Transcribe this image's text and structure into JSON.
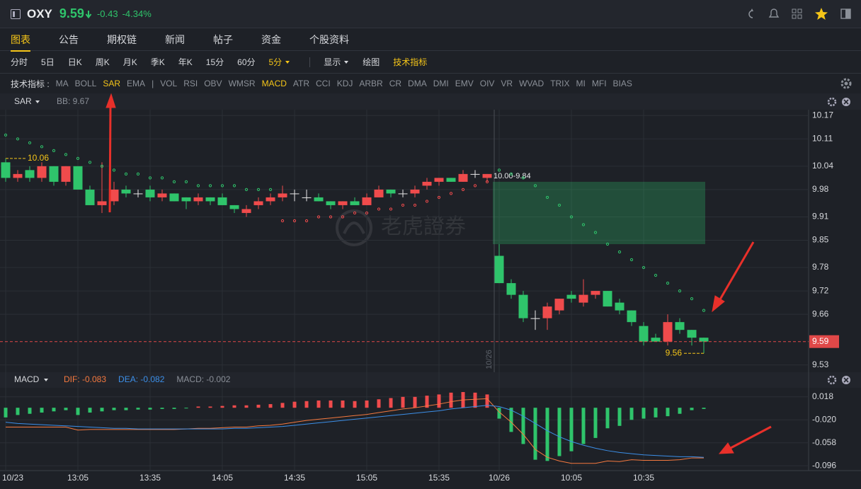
{
  "header": {
    "symbol": "OXY",
    "price": "9.59",
    "change": "-0.43",
    "change_pct": "-4.34%"
  },
  "tabs": [
    "图表",
    "公告",
    "期权链",
    "新闻",
    "帖子",
    "资金",
    "个股资料"
  ],
  "periods": [
    "分时",
    "5日",
    "日K",
    "周K",
    "月K",
    "季K",
    "年K",
    "15分",
    "60分",
    "5分"
  ],
  "toolbar": [
    "显示",
    "绘图",
    "技术指标"
  ],
  "indicator_label": "技术指标 :",
  "indicators": [
    "MA",
    "BOLL",
    "SAR",
    "EMA",
    "|",
    "VOL",
    "RSI",
    "OBV",
    "WMSR",
    "MACD",
    "ATR",
    "CCI",
    "KDJ",
    "ARBR",
    "CR",
    "DMA",
    "DMI",
    "EMV",
    "OIV",
    "VR",
    "WVAD",
    "TRIX",
    "MI",
    "MFI",
    "BIAS"
  ],
  "watermark": "老虎證券",
  "chart_data": [
    {
      "type": "candlestick",
      "categories": [
        "10/23",
        null,
        null,
        null,
        null,
        null,
        "13:05",
        null,
        null,
        null,
        null,
        null,
        "13:35",
        null,
        null,
        null,
        null,
        null,
        "14:05",
        null,
        null,
        null,
        null,
        null,
        "14:35",
        null,
        null,
        null,
        null,
        null,
        "15:05",
        null,
        null,
        null,
        null,
        null,
        "15:35",
        null,
        null,
        null,
        null,
        "10/26",
        null,
        null,
        null,
        null,
        null,
        "10:05",
        null,
        null,
        null,
        null,
        null,
        "10:35",
        null,
        null,
        null,
        null,
        null
      ],
      "open": [
        10.05,
        10.01,
        10.03,
        10.01,
        10.04,
        10.0,
        10.04,
        9.98,
        9.94,
        9.95,
        9.98,
        9.97,
        9.98,
        9.96,
        9.97,
        9.96,
        9.95,
        9.96,
        9.96,
        9.94,
        9.92,
        9.94,
        9.95,
        9.96,
        9.97,
        9.96,
        9.96,
        9.95,
        9.94,
        9.95,
        9.94,
        9.96,
        9.98,
        9.97,
        9.97,
        9.99,
        10.0,
        10.01,
        10.0,
        10.02,
        10.01,
        9.81,
        9.74,
        9.71,
        9.65,
        9.65,
        9.67,
        9.71,
        9.69,
        9.71,
        9.72,
        9.69,
        9.67,
        9.63,
        9.6,
        9.59,
        9.64,
        9.62,
        9.6
      ],
      "high": [
        10.06,
        10.03,
        10.04,
        10.05,
        10.04,
        10.04,
        10.04,
        9.99,
        10.05,
        10.0,
        9.99,
        9.98,
        9.99,
        9.98,
        9.97,
        9.96,
        9.97,
        9.96,
        9.97,
        9.94,
        9.94,
        9.96,
        9.97,
        9.99,
        9.98,
        9.98,
        9.97,
        9.95,
        9.95,
        9.96,
        9.97,
        9.99,
        9.98,
        9.98,
        9.99,
        10.01,
        10.01,
        10.01,
        10.03,
        10.03,
        10.02,
        9.84,
        9.75,
        9.72,
        9.67,
        9.69,
        9.7,
        9.72,
        9.75,
        9.72,
        9.72,
        9.7,
        9.67,
        9.64,
        9.61,
        9.66,
        9.65,
        9.62,
        9.6
      ],
      "low": [
        10.0,
        10.0,
        10.0,
        10.0,
        9.99,
        9.99,
        9.98,
        9.94,
        9.92,
        9.94,
        9.96,
        9.96,
        9.95,
        9.95,
        9.95,
        9.93,
        9.94,
        9.94,
        9.94,
        9.92,
        9.91,
        9.93,
        9.94,
        9.95,
        9.95,
        9.95,
        9.95,
        9.93,
        9.93,
        9.94,
        9.94,
        9.96,
        9.96,
        9.96,
        9.96,
        9.98,
        9.99,
        10.0,
        10.0,
        10.01,
        10.0,
        9.74,
        9.7,
        9.64,
        9.62,
        9.62,
        9.66,
        9.69,
        9.68,
        9.7,
        9.68,
        9.66,
        9.63,
        9.58,
        9.59,
        9.58,
        9.61,
        9.58,
        9.56
      ],
      "close": [
        10.01,
        10.02,
        10.01,
        10.04,
        10.0,
        10.04,
        9.98,
        9.94,
        9.95,
        9.98,
        9.97,
        9.97,
        9.96,
        9.97,
        9.95,
        9.95,
        9.96,
        9.95,
        9.94,
        9.93,
        9.93,
        9.95,
        9.96,
        9.97,
        9.97,
        9.96,
        9.95,
        9.94,
        9.95,
        9.94,
        9.96,
        9.98,
        9.97,
        9.97,
        9.98,
        10.0,
        10.01,
        10.0,
        10.02,
        10.02,
        10.02,
        9.74,
        9.71,
        9.65,
        9.65,
        9.68,
        9.7,
        9.7,
        9.71,
        9.72,
        9.68,
        9.67,
        9.64,
        9.59,
        9.59,
        9.64,
        9.62,
        9.6,
        9.59
      ],
      "up_color": "#f04b4c",
      "down_color": "#2fc46b",
      "sar": {
        "name": "SAR",
        "values": [
          10.12,
          10.11,
          10.1,
          10.09,
          10.08,
          10.07,
          10.06,
          10.05,
          10.04,
          10.03,
          10.02,
          10.02,
          10.01,
          10.01,
          10.0,
          10.0,
          9.99,
          9.99,
          9.99,
          9.99,
          9.98,
          9.98,
          9.98,
          9.9,
          9.9,
          9.9,
          9.91,
          9.91,
          9.91,
          9.92,
          9.92,
          9.93,
          9.93,
          9.94,
          9.94,
          9.95,
          9.96,
          9.97,
          9.98,
          9.99,
          10.0,
          10.03,
          10.02,
          10.01,
          9.99,
          9.96,
          9.94,
          9.91,
          9.89,
          9.87,
          9.84,
          9.82,
          9.8,
          9.78,
          9.76,
          9.74,
          9.72,
          9.7,
          9.67
        ]
      },
      "sar_label": "BB: 9.67",
      "gap": {
        "label": "10.00-9.84",
        "range": [
          9.84,
          10.0
        ]
      },
      "ylim": [
        9.515,
        10.185
      ],
      "yticks": [
        9.53,
        9.66,
        9.72,
        9.78,
        9.85,
        9.91,
        9.98,
        10.04,
        10.11,
        10.17
      ],
      "grid": true
    },
    {
      "type": "macd",
      "title": "MACD",
      "up_color": "#f04b4c",
      "down_color": "#2fc46b",
      "series": [
        {
          "name": "DIF: -0.083",
          "color": "#f5793f",
          "values": [
            -0.032,
            -0.032,
            -0.032,
            -0.032,
            -0.032,
            -0.032,
            -0.037,
            -0.036,
            -0.036,
            -0.036,
            -0.036,
            -0.036,
            -0.036,
            -0.036,
            -0.036,
            -0.035,
            -0.034,
            -0.034,
            -0.033,
            -0.032,
            -0.032,
            -0.03,
            -0.029,
            -0.027,
            -0.024,
            -0.021,
            -0.019,
            -0.017,
            -0.015,
            -0.013,
            -0.011,
            -0.008,
            -0.005,
            -0.002,
            0.0,
            0.003,
            0.006,
            0.01,
            0.013,
            0.014,
            0.015,
            -0.007,
            -0.024,
            -0.044,
            -0.069,
            -0.082,
            -0.088,
            -0.092,
            -0.092,
            -0.092,
            -0.088,
            -0.089,
            -0.086,
            -0.087,
            -0.087,
            -0.087,
            -0.086,
            -0.083,
            -0.083
          ]
        },
        {
          "name": "DEA: -0.082",
          "color": "#3c8fe8",
          "values": [
            -0.024,
            -0.026,
            -0.027,
            -0.028,
            -0.029,
            -0.03,
            -0.031,
            -0.032,
            -0.033,
            -0.034,
            -0.034,
            -0.035,
            -0.035,
            -0.035,
            -0.035,
            -0.035,
            -0.035,
            -0.035,
            -0.035,
            -0.034,
            -0.034,
            -0.033,
            -0.032,
            -0.031,
            -0.029,
            -0.027,
            -0.025,
            -0.023,
            -0.021,
            -0.019,
            -0.017,
            -0.015,
            -0.013,
            -0.011,
            -0.009,
            -0.007,
            -0.005,
            -0.002,
            0.0,
            0.002,
            0.004,
            0.002,
            -0.004,
            -0.014,
            -0.026,
            -0.038,
            -0.048,
            -0.056,
            -0.062,
            -0.067,
            -0.071,
            -0.074,
            -0.076,
            -0.078,
            -0.079,
            -0.08,
            -0.081,
            -0.081,
            -0.082
          ]
        },
        {
          "name": "MACD: -0.002",
          "color": "#8a8f98",
          "values": [
            -0.016,
            -0.012,
            -0.01,
            -0.008,
            -0.006,
            -0.004,
            -0.012,
            -0.008,
            -0.006,
            -0.004,
            -0.004,
            -0.003,
            -0.003,
            -0.002,
            -0.002,
            -0.001,
            0.002,
            0.002,
            0.003,
            0.004,
            0.004,
            0.005,
            0.006,
            0.008,
            0.01,
            0.011,
            0.012,
            0.012,
            0.012,
            0.011,
            0.012,
            0.014,
            0.016,
            0.018,
            0.018,
            0.02,
            0.022,
            0.025,
            0.026,
            0.025,
            0.022,
            -0.018,
            -0.04,
            -0.06,
            -0.086,
            -0.088,
            -0.08,
            -0.072,
            -0.06,
            -0.05,
            -0.034,
            -0.03,
            -0.02,
            -0.018,
            -0.016,
            -0.014,
            -0.01,
            -0.004,
            -0.002
          ]
        }
      ],
      "ylim": [
        -0.104,
        0.033
      ],
      "yticks": [
        0.018,
        {
          "value": -0.02,
          "label": "-0.020"
        },
        -0.058,
        -0.096
      ],
      "grid": true
    }
  ]
}
